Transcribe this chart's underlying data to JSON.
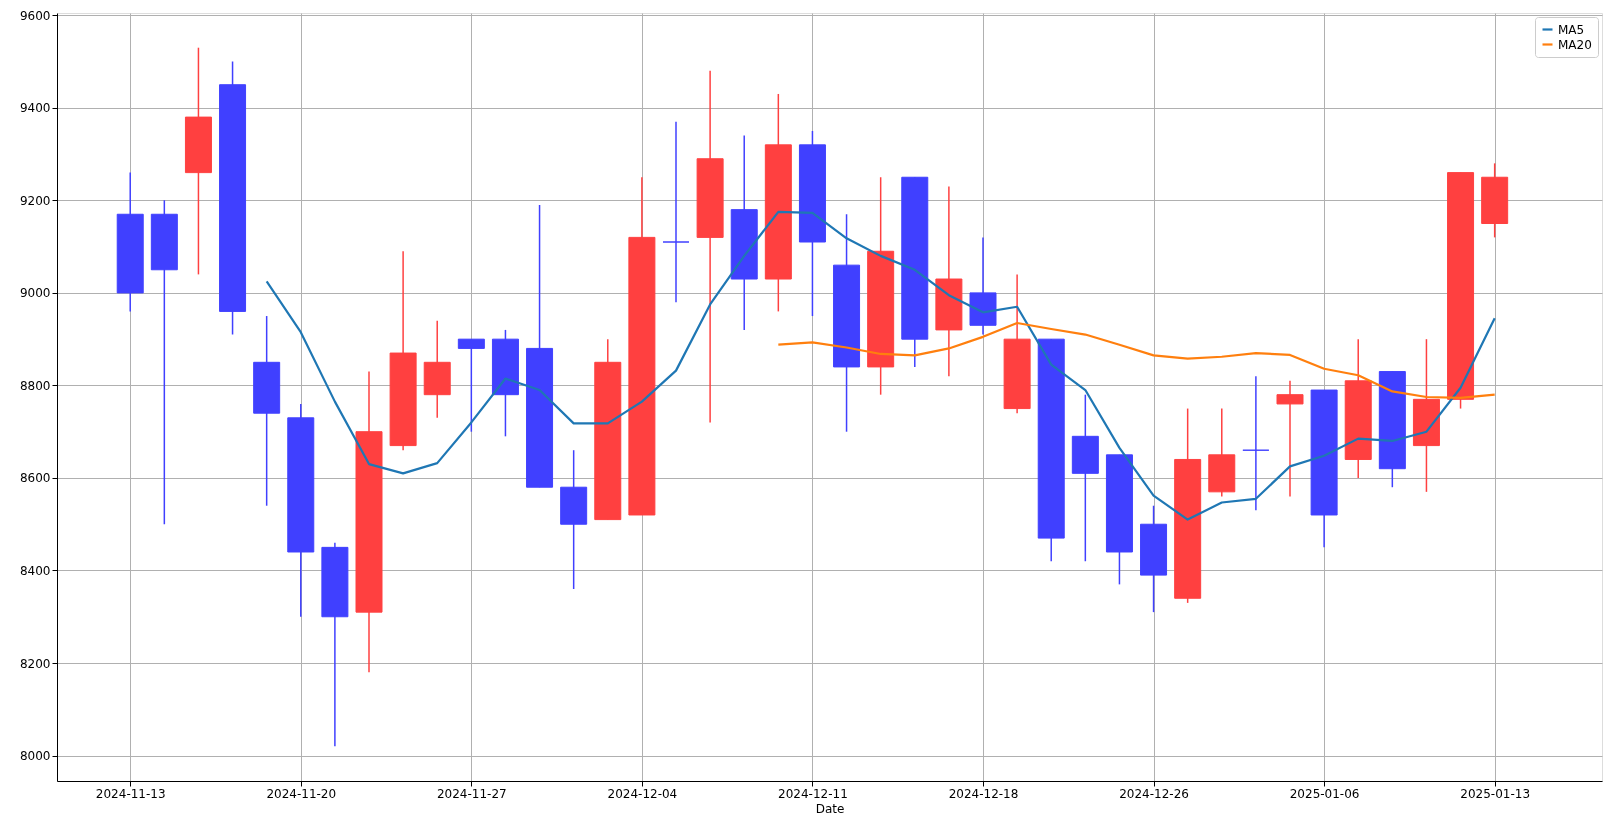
{
  "chart_data": {
    "type": "candlestick",
    "xlabel": "Date",
    "categories": [
      "2024-11-13",
      null,
      null,
      null,
      null,
      "2024-11-20",
      null,
      null,
      null,
      null,
      "2024-11-27",
      null,
      null,
      null,
      null,
      "2024-12-04",
      null,
      null,
      null,
      null,
      "2024-12-11",
      null,
      null,
      null,
      null,
      "2024-12-18",
      null,
      null,
      null,
      null,
      "2024-12-26",
      null,
      null,
      null,
      null,
      "2025-01-06",
      null,
      null,
      null,
      null,
      "2025-01-13"
    ],
    "ohlc": [
      [
        9170,
        9260,
        8960,
        9000
      ],
      [
        9170,
        9200,
        8500,
        9050
      ],
      [
        9260,
        9530,
        9040,
        9380
      ],
      [
        9450,
        9500,
        8910,
        8960
      ],
      [
        8850,
        8950,
        8540,
        8740
      ],
      [
        8730,
        8760,
        8300,
        8440
      ],
      [
        8450,
        8460,
        8020,
        8300
      ],
      [
        8310,
        8830,
        8180,
        8700
      ],
      [
        8670,
        9090,
        8660,
        8870
      ],
      [
        8780,
        8940,
        8730,
        8850
      ],
      [
        8900,
        8900,
        8700,
        8880
      ],
      [
        8900,
        8920,
        8690,
        8780
      ],
      [
        8880,
        9190,
        8580,
        8580
      ],
      [
        8580,
        8660,
        8360,
        8500
      ],
      [
        8510,
        8900,
        8510,
        8850
      ],
      [
        8520,
        9250,
        8520,
        9120
      ],
      [
        9110,
        9370,
        8980,
        9110
      ],
      [
        9120,
        9480,
        8720,
        9290
      ],
      [
        9180,
        9340,
        8920,
        9030
      ],
      [
        9030,
        9430,
        8960,
        9320
      ],
      [
        9320,
        9350,
        8950,
        9110
      ],
      [
        9060,
        9170,
        8700,
        8840
      ],
      [
        8840,
        9250,
        8780,
        9090
      ],
      [
        9250,
        9250,
        8840,
        8900
      ],
      [
        8920,
        9230,
        8820,
        9030
      ],
      [
        9000,
        9120,
        8910,
        8930
      ],
      [
        8750,
        9040,
        8740,
        8900
      ],
      [
        8900,
        8900,
        8420,
        8470
      ],
      [
        8690,
        8780,
        8420,
        8610
      ],
      [
        8650,
        8650,
        8370,
        8440
      ],
      [
        8500,
        8540,
        8310,
        8390
      ],
      [
        8340,
        8750,
        8330,
        8640
      ],
      [
        8570,
        8750,
        8560,
        8650
      ],
      [
        8660,
        8820,
        8530,
        8660
      ],
      [
        8760,
        8810,
        8560,
        8780
      ],
      [
        8790,
        8790,
        8450,
        8520
      ],
      [
        8640,
        8900,
        8600,
        8810
      ],
      [
        8830,
        8830,
        8580,
        8620
      ],
      [
        8670,
        8900,
        8570,
        8770
      ],
      [
        8770,
        9260,
        8750,
        9260
      ],
      [
        9150,
        9280,
        9120,
        9250
      ]
    ],
    "colors": [
      "#4040ff",
      "#4040ff",
      "#ff4040",
      "#4040ff",
      "#4040ff",
      "#4040ff",
      "#4040ff",
      "#ff4040",
      "#ff4040",
      "#ff4040",
      "#4040ff",
      "#4040ff",
      "#4040ff",
      "#4040ff",
      "#ff4040",
      "#ff4040",
      "#4040ff",
      "#ff4040",
      "#4040ff",
      "#ff4040",
      "#4040ff",
      "#4040ff",
      "#ff4040",
      "#4040ff",
      "#ff4040",
      "#4040ff",
      "#ff4040",
      "#4040ff",
      "#4040ff",
      "#4040ff",
      "#4040ff",
      "#ff4040",
      "#ff4040",
      "#4040ff",
      "#ff4040",
      "#4040ff",
      "#ff4040",
      "#4040ff",
      "#ff4040",
      "#ff4040",
      "#ff4040"
    ],
    "series": [
      {
        "name": "MA5",
        "type": "line",
        "color": "#1f77b4",
        "values": [
          null,
          null,
          null,
          null,
          9025,
          8915,
          8765,
          8630,
          8610,
          8632,
          8720,
          8815,
          8790,
          8718,
          8718,
          8765,
          8832,
          8975,
          9080,
          9175,
          9173,
          9118,
          9080,
          9050,
          8995,
          8958,
          8970,
          8845,
          8790,
          8665,
          8562,
          8510,
          8547,
          8555,
          8625,
          8648,
          8685,
          8680,
          8700,
          8795,
          8945
        ]
      },
      {
        "name": "MA20",
        "type": "line",
        "color": "#ff7f0e",
        "values": [
          null,
          null,
          null,
          null,
          null,
          null,
          null,
          null,
          null,
          null,
          null,
          null,
          null,
          null,
          null,
          null,
          null,
          null,
          null,
          8888,
          8893,
          8882,
          8868,
          8865,
          8880,
          8905,
          8935,
          8922,
          8910,
          8888,
          8865,
          8858,
          8862,
          8870,
          8866,
          8836,
          8822,
          8787,
          8775,
          8773,
          8780
        ]
      }
    ],
    "ylim": [
      7945,
      9605
    ],
    "yticks": [
      8000,
      8200,
      8400,
      8600,
      8800,
      9000,
      9200,
      9400,
      9600
    ],
    "grid": true,
    "legend": "top right"
  }
}
